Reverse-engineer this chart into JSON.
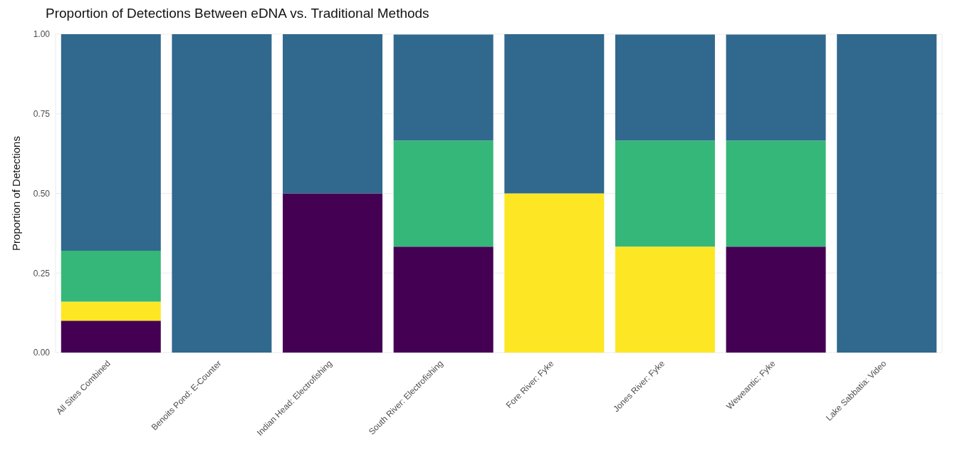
{
  "chart_data": {
    "type": "bar",
    "title": "Proportion of Detections Between eDNA vs. Traditional Methods",
    "ylabel": "Proportion of Detections",
    "stacked": true,
    "grid": true,
    "legend": false,
    "categories": [
      "All Sites Combined",
      "Benoits Pond: E-Counter",
      "Indian Head: Electrofishing",
      "South River: Electrofishing",
      "Fore River: Fyke",
      "Jones River: Fyke",
      "Weweantic: Fyke",
      "Lake Sabbatia: Video"
    ],
    "series": [
      {
        "color": "#440154",
        "values": [
          0.1,
          0,
          0.5,
          0.333,
          0,
          0,
          0.333,
          0
        ]
      },
      {
        "color": "#fde725",
        "values": [
          0.06,
          0,
          0,
          0,
          0.5,
          0.333,
          0,
          0
        ]
      },
      {
        "color": "#35b779",
        "values": [
          0.16,
          0,
          0,
          0.333,
          0,
          0.333,
          0.333,
          0
        ]
      },
      {
        "color": "#31688e",
        "values": [
          0.68,
          1,
          0.5,
          0.333,
          0.5,
          0.333,
          0.333,
          1
        ]
      }
    ],
    "ylim": [
      0,
      1
    ],
    "yticks": [
      {
        "value": 0,
        "label": "0.00"
      },
      {
        "value": 0.25,
        "label": "0.25"
      },
      {
        "value": 0.5,
        "label": "0.50"
      },
      {
        "value": 0.75,
        "label": "0.75"
      },
      {
        "value": 1,
        "label": "1.00"
      }
    ]
  }
}
